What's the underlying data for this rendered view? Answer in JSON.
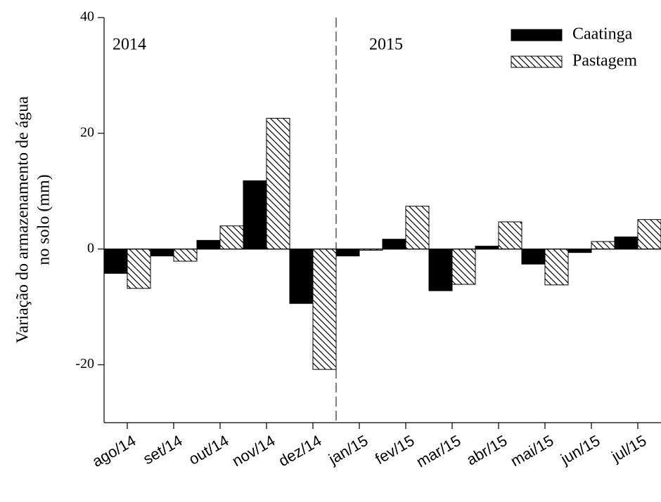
{
  "chart_data": {
    "type": "bar",
    "ylabel": [
      "Variação do armazenamento de água",
      "no solo (mm)"
    ],
    "annotations": [
      "2014",
      "2015"
    ],
    "categories": [
      "ago/14",
      "set/14",
      "out/14",
      "nov/14",
      "dez/14",
      "jan/15",
      "fev/15",
      "mar/15",
      "abr/15",
      "mai/15",
      "jun/15",
      "jul/15"
    ],
    "series": [
      {
        "name": "Caatinga",
        "color": "#000000",
        "pattern": "solid",
        "values": [
          -4.2,
          -1.2,
          1.5,
          11.8,
          -9.4,
          -1.2,
          1.7,
          -7.2,
          0.5,
          -2.6,
          -0.6,
          2.1
        ]
      },
      {
        "name": "Pastagem",
        "color": "#000000",
        "pattern": "hatch",
        "values": [
          -6.8,
          -2.1,
          4.0,
          22.6,
          -20.8,
          -0.2,
          7.4,
          -6.1,
          4.7,
          -6.2,
          1.3,
          5.1
        ]
      }
    ],
    "ylim": [
      -30,
      40
    ],
    "yticks": [
      -20,
      0,
      20,
      40
    ],
    "legend": "upper right"
  }
}
